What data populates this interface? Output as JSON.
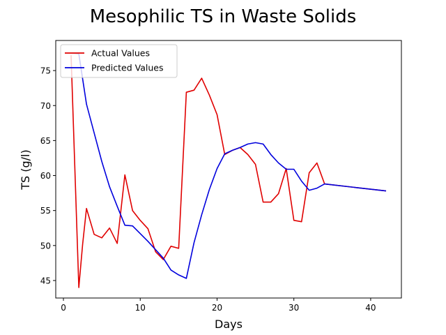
{
  "chart_data": {
    "type": "line",
    "title": "Mesophilic TS in Waste Solids",
    "xlabel": "Days",
    "ylabel": "TS (g/l)",
    "xlim": [
      -1,
      44
    ],
    "ylim": [
      42.5,
      79.3
    ],
    "xticks": [
      0,
      10,
      20,
      30,
      40
    ],
    "yticks": [
      45,
      50,
      55,
      60,
      65,
      70,
      75
    ],
    "grid": false,
    "legend_position": "top-left",
    "series": [
      {
        "name": "Actual Values",
        "color": "#e00000",
        "x": [
          1,
          2,
          2.5,
          3,
          4,
          5,
          6,
          7,
          8,
          9,
          10,
          11,
          12,
          13,
          14,
          15,
          16,
          17,
          18,
          19,
          20,
          21,
          22,
          23,
          24,
          25,
          26,
          27,
          28,
          29,
          30,
          31,
          32,
          33,
          34,
          42
        ],
        "y": [
          77.2,
          44.0,
          50.2,
          55.3,
          51.6,
          51.1,
          52.5,
          50.3,
          60.1,
          55.0,
          53.6,
          52.4,
          49.1,
          48.0,
          49.9,
          49.6,
          71.9,
          72.2,
          73.9,
          71.5,
          68.7,
          63.0,
          63.6,
          64.0,
          63.0,
          61.6,
          56.2,
          56.2,
          57.4,
          61.0,
          53.6,
          53.4,
          60.4,
          61.8,
          58.8,
          57.8
        ]
      },
      {
        "name": "Predicted Values",
        "color": "#0000dd",
        "x": [
          1,
          2,
          3,
          4,
          5,
          6,
          7,
          8,
          9,
          10,
          11,
          12,
          13,
          14,
          15,
          16,
          17,
          18,
          19,
          20,
          21,
          22,
          23,
          24,
          25,
          26,
          27,
          28,
          29,
          30,
          31,
          32,
          33,
          34,
          42
        ],
        "y": [
          77.5,
          77.4,
          70.2,
          66.1,
          62.0,
          58.4,
          55.6,
          52.9,
          52.8,
          51.7,
          50.6,
          49.4,
          48.2,
          46.5,
          45.8,
          45.3,
          50.4,
          54.4,
          58.0,
          61.0,
          63.1,
          63.6,
          64.0,
          64.5,
          64.7,
          64.5,
          63.0,
          61.8,
          60.9,
          60.9,
          59.2,
          57.9,
          58.2,
          58.8,
          57.8
        ]
      }
    ]
  }
}
